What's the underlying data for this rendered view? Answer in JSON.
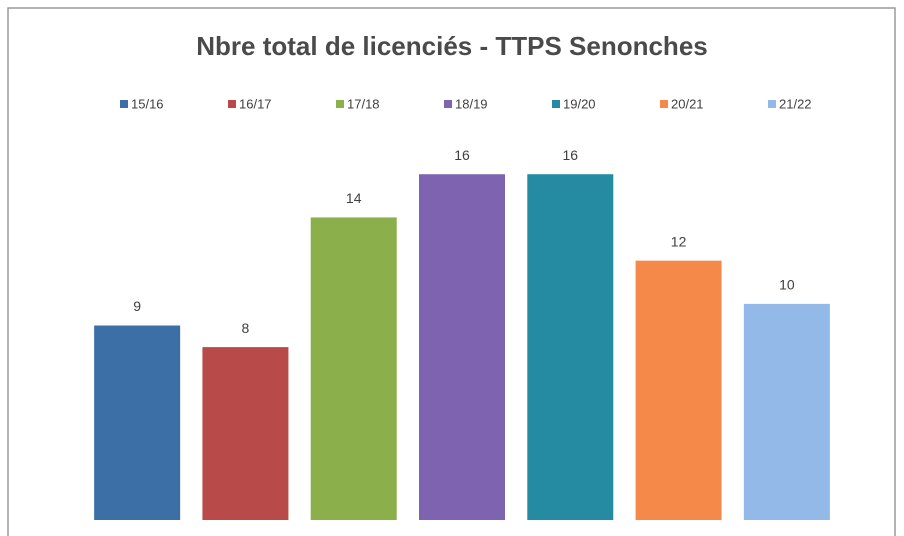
{
  "chart_data": {
    "type": "bar",
    "title": "Nbre total de licenciés - TTPS Senonches",
    "series": [
      {
        "name": "15/16",
        "color": "#3b6fa6",
        "values": [
          9
        ]
      },
      {
        "name": "16/17",
        "color": "#b94a4a",
        "values": [
          8
        ]
      },
      {
        "name": "17/18",
        "color": "#8bb04b",
        "values": [
          14
        ]
      },
      {
        "name": "18/19",
        "color": "#7d63b0",
        "values": [
          16
        ]
      },
      {
        "name": "19/20",
        "color": "#248ba3",
        "values": [
          16
        ]
      },
      {
        "name": "20/21",
        "color": "#f5894a",
        "values": [
          12
        ]
      },
      {
        "name": "21/22",
        "color": "#93b9e8",
        "values": [
          10
        ]
      }
    ],
    "ylim": [
      0,
      18
    ],
    "legend": "top"
  }
}
